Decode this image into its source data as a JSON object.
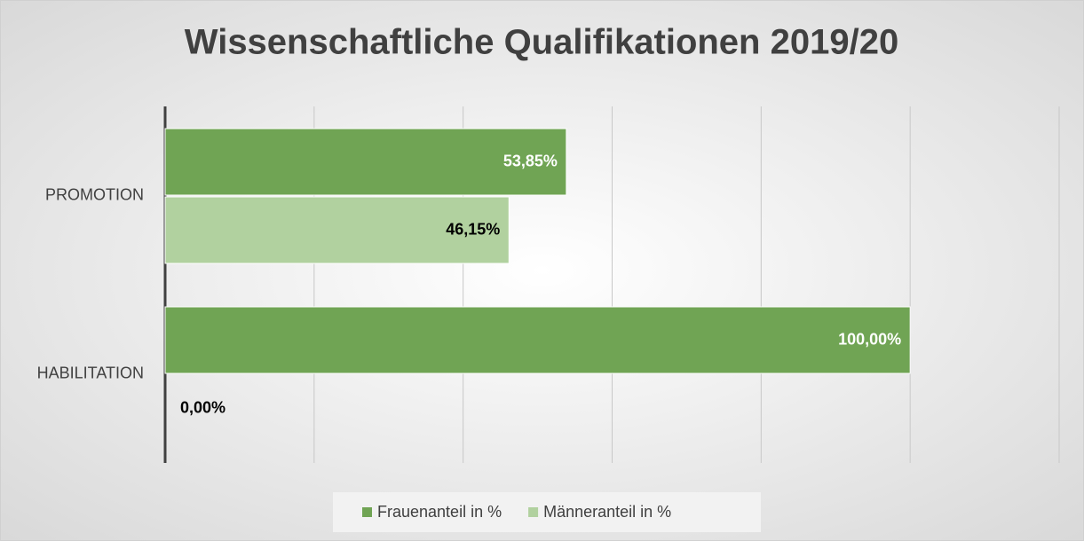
{
  "chart_data": {
    "type": "bar",
    "orientation": "horizontal",
    "title": "Wissenschaftliche Qualifikationen 2019/20",
    "categories": [
      "PROMOTION",
      "HABILITATION"
    ],
    "series": [
      {
        "name": "Frauenanteil in %",
        "color": "#70a454",
        "values": [
          53.85,
          100
        ],
        "value_labels": [
          "53,85%",
          "100,00%"
        ]
      },
      {
        "name": "Männeranteil in %",
        "color": "#b1d19f",
        "values": [
          46.15,
          0
        ],
        "value_labels": [
          "46,15%",
          "0,00%"
        ]
      }
    ],
    "xlim": [
      0,
      120
    ],
    "xticks": [
      0,
      20,
      40,
      60,
      80,
      100,
      120
    ],
    "grid": true,
    "legend": "bottom"
  }
}
